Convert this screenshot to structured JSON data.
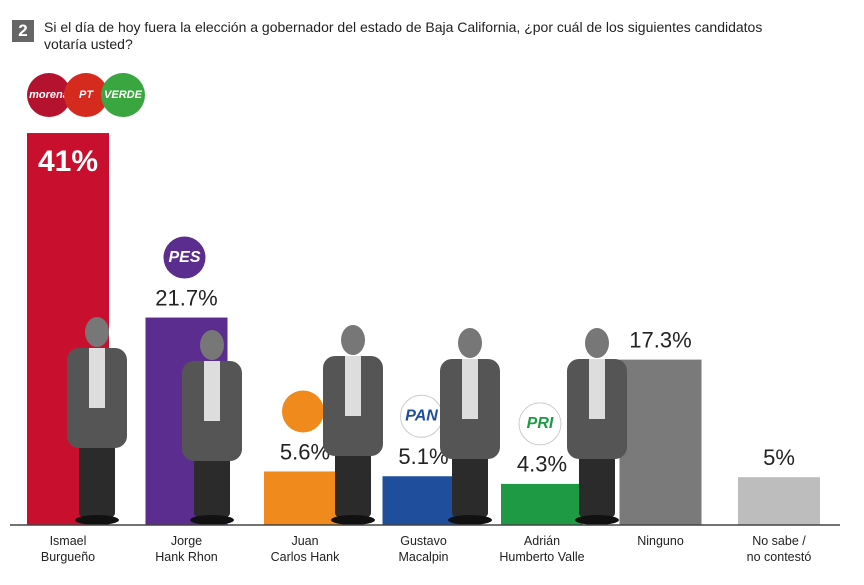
{
  "question_number": "2",
  "chart_data": {
    "type": "bar",
    "title": "Si el día de hoy fuera la elección a gobernador del estado de Baja California, ¿por cuál de los siguientes candidatos votaría usted?",
    "categories": [
      "Ismael\nBurgueño",
      "Jorge\nHank Rhon",
      "Juan\nCarlos Hank",
      "Gustavo\nMacalpin",
      "Adrián\nHumberto Valle",
      "Ninguno",
      "No sabe /\nno contestó"
    ],
    "values": [
      41,
      21.7,
      5.6,
      5.1,
      4.3,
      17.3,
      5
    ],
    "value_labels": [
      "41%",
      "21.7%",
      "5.6%",
      "5.1%",
      "4.3%",
      "17.3%",
      "5%"
    ],
    "colors": [
      "#c8102e",
      "#5b2d8e",
      "#f08a1c",
      "#1f4e9c",
      "#1e9a45",
      "#7a7a7a",
      "#bdbdbd"
    ],
    "parties": [
      [
        "morena",
        "PT",
        "VERDE"
      ],
      [
        "PES"
      ],
      [
        null
      ],
      [
        "PAN"
      ],
      [
        "PRI"
      ],
      null,
      null
    ],
    "logo_colors": [
      [
        "#b5122f",
        "#d52b1e",
        "#3aa63f"
      ],
      [
        "#5b2d8e"
      ],
      [
        "#f08a1c"
      ],
      [
        "#ffffff"
      ],
      [
        "#ffffff"
      ],
      null,
      null
    ]
  }
}
